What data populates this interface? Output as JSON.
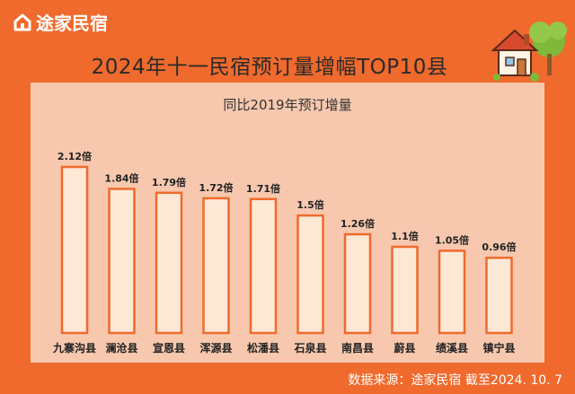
{
  "brand": {
    "name": "途家民宿",
    "logo_icon": "tujia-house-logo-icon"
  },
  "decoration": {
    "icon": "house-with-tree-icon"
  },
  "chart_data": {
    "type": "bar",
    "title": "2024年十一民宿预订量增幅TOP10县",
    "subtitle": "同比2019年预订增量",
    "categories": [
      "九寨沟县",
      "澜沧县",
      "宣恩县",
      "浑源县",
      "松潘县",
      "石泉县",
      "南昌县",
      "蔚县",
      "绩溪县",
      "镇宁县"
    ],
    "values": [
      2.12,
      1.84,
      1.79,
      1.72,
      1.71,
      1.5,
      1.26,
      1.1,
      1.05,
      0.96
    ],
    "value_labels": [
      "2.12倍",
      "1.84倍",
      "1.79倍",
      "1.72倍",
      "1.71倍",
      "1.5倍",
      "1.26倍",
      "1.1倍",
      "1.05倍",
      "0.96倍"
    ],
    "ylim": [
      0,
      2.12
    ],
    "grid": false,
    "colors": {
      "bar_fill": "#fde8d6",
      "bar_stroke": "#ef6a2c",
      "background": "#ef6a2c",
      "panel": "#f7c8ae"
    }
  },
  "footer": {
    "source": "数据来源：途家民宿  截至2024. 10. 7"
  }
}
